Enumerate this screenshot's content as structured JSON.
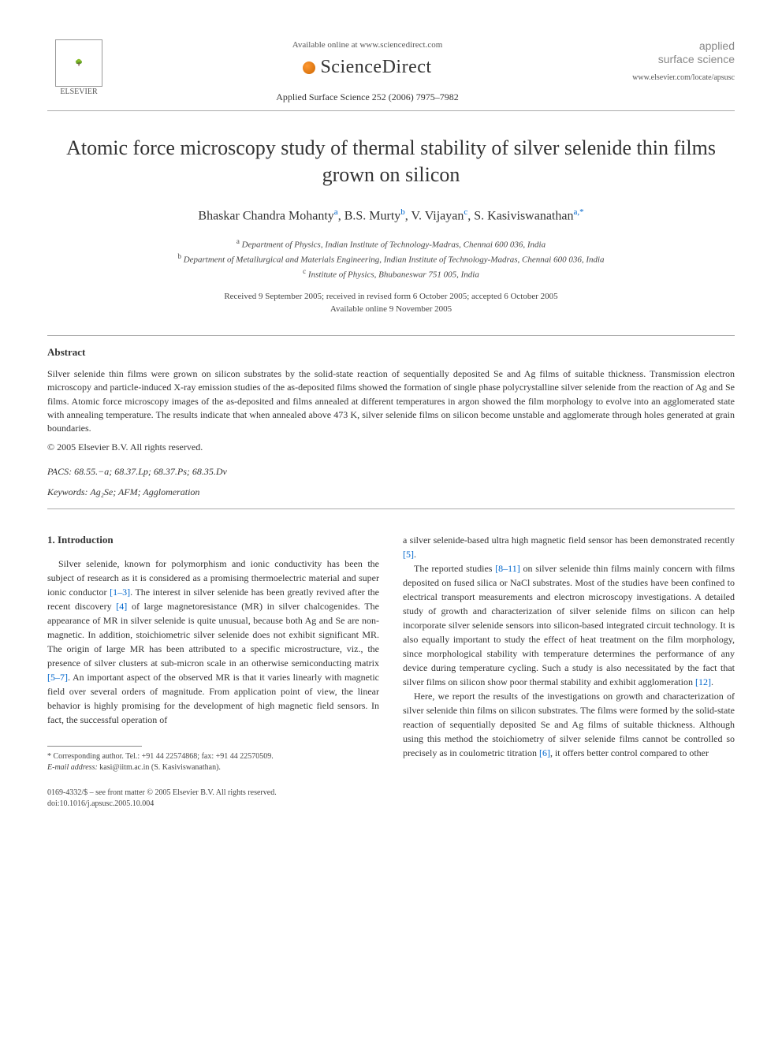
{
  "header": {
    "available_online": "Available online at www.sciencedirect.com",
    "sciencedirect": "ScienceDirect",
    "journal_ref": "Applied Surface Science 252 (2006) 7975–7982",
    "elsevier_label": "ELSEVIER",
    "applied_line1": "applied",
    "applied_line2": "surface science",
    "journal_url": "www.elsevier.com/locate/apsusc"
  },
  "title": "Atomic force microscopy study of thermal stability of silver selenide thin films grown on silicon",
  "authors": {
    "a1": "Bhaskar Chandra Mohanty",
    "a1_sup": "a",
    "a2": "B.S. Murty",
    "a2_sup": "b",
    "a3": "V. Vijayan",
    "a3_sup": "c",
    "a4": "S. Kasiviswanathan",
    "a4_sup": "a,",
    "star": "*"
  },
  "affiliations": {
    "a": "Department of Physics, Indian Institute of Technology-Madras, Chennai 600 036, India",
    "b": "Department of Metallurgical and Materials Engineering, Indian Institute of Technology-Madras, Chennai 600 036, India",
    "c": "Institute of Physics, Bhubaneswar 751 005, India"
  },
  "dates": {
    "line1": "Received 9 September 2005; received in revised form 6 October 2005; accepted 6 October 2005",
    "line2": "Available online 9 November 2005"
  },
  "abstract": {
    "heading": "Abstract",
    "text": "Silver selenide thin films were grown on silicon substrates by the solid-state reaction of sequentially deposited Se and Ag films of suitable thickness. Transmission electron microscopy and particle-induced X-ray emission studies of the as-deposited films showed the formation of single phase polycrystalline silver selenide from the reaction of Ag and Se films. Atomic force microscopy images of the as-deposited and films annealed at different temperatures in argon showed the film morphology to evolve into an agglomerated state with annealing temperature. The results indicate that when annealed above 473 K, silver selenide films on silicon become unstable and agglomerate through holes generated at grain boundaries.",
    "copyright": "© 2005 Elsevier B.V. All rights reserved."
  },
  "pacs": {
    "label": "PACS:",
    "value": "68.55.−a; 68.37.Lp; 68.37.Ps; 68.35.Dv"
  },
  "keywords": {
    "label": "Keywords:",
    "value": "Ag₂Se; AFM; Agglomeration"
  },
  "intro": {
    "heading": "1. Introduction",
    "col1_p1": "Silver selenide, known for polymorphism and ionic conductivity has been the subject of research as it is considered as a promising thermoelectric material and super ionic conductor [1–3]. The interest in silver selenide has been greatly revived after the recent discovery [4] of large magnetoresistance (MR) in silver chalcogenides. The appearance of MR in silver selenide is quite unusual, because both Ag and Se are non-magnetic. In addition, stoichiometric silver selenide does not exhibit significant MR. The origin of large MR has been attributed to a specific microstructure, viz., the presence of silver clusters at sub-micron scale in an otherwise semiconducting matrix [5–7]. An important aspect of the observed MR is that it varies linearly with magnetic field over several orders of magnitude. From application point of view, the linear behavior is highly promising for the development of high magnetic field sensors. In fact, the successful operation of",
    "col2_p1": "a silver selenide-based ultra high magnetic field sensor has been demonstrated recently [5].",
    "col2_p2": "The reported studies [8–11] on silver selenide thin films mainly concern with films deposited on fused silica or NaCl substrates. Most of the studies have been confined to electrical transport measurements and electron microscopy investigations. A detailed study of growth and characterization of silver selenide films on silicon can help incorporate silver selenide sensors into silicon-based integrated circuit technology. It is also equally important to study the effect of heat treatment on the film morphology, since morphological stability with temperature determines the performance of any device during temperature cycling. Such a study is also necessitated by the fact that silver films on silicon show poor thermal stability and exhibit agglomeration [12].",
    "col2_p3": "Here, we report the results of the investigations on growth and characterization of silver selenide thin films on silicon substrates. The films were formed by the solid-state reaction of sequentially deposited Se and Ag films of suitable thickness. Although using this method the stoichiometry of silver selenide films cannot be controlled so precisely as in coulometric titration [6], it offers better control compared to other"
  },
  "footnote": {
    "corr": "* Corresponding author. Tel.: +91 44 22574868; fax: +91 44 22570509.",
    "email_label": "E-mail address:",
    "email": "kasi@iitm.ac.in (S. Kasiviswanathan)."
  },
  "footer": {
    "issn": "0169-4332/$ – see front matter © 2005 Elsevier B.V. All rights reserved.",
    "doi": "doi:10.1016/j.apsusc.2005.10.004"
  },
  "colors": {
    "text": "#333333",
    "link": "#0066cc",
    "muted": "#555555",
    "rule": "#aaaaaa",
    "bg": "#ffffff"
  },
  "typography": {
    "title_fontsize": 26,
    "author_fontsize": 16,
    "body_fontsize": 12,
    "footnote_fontsize": 10
  }
}
